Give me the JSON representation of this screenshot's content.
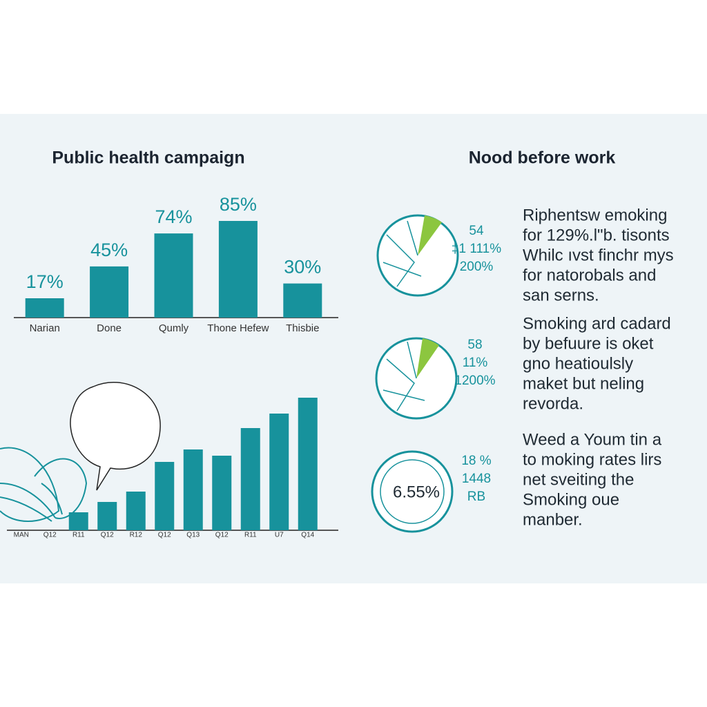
{
  "chart_data": [
    {
      "type": "bar",
      "title": "Public health campaign",
      "categories": [
        "Narian",
        "Done",
        "Qumly",
        "Thone Hefew",
        "Thisbie"
      ],
      "values": [
        17,
        45,
        74,
        85,
        30
      ],
      "value_labels": [
        "17%",
        "45%",
        "74%",
        "85%",
        "30%"
      ],
      "color": "#17929c"
    },
    {
      "type": "bar",
      "categories": [
        "MAN",
        "Q12",
        "R11",
        "Q12",
        "R12",
        "Q12",
        "Q13",
        "Q12",
        "R11",
        "U7",
        "Q14"
      ],
      "values": [
        null,
        null,
        26,
        41,
        56,
        99,
        117,
        108,
        148,
        169,
        192
      ],
      "color": "#17929c"
    }
  ],
  "panel": {
    "title": "Nood before work",
    "dials": [
      {
        "labels": [
          "54",
          "‡1 111%",
          "200%"
        ]
      },
      {
        "labels": [
          "58",
          "11%",
          "1200%"
        ]
      },
      {
        "center": "6.55%",
        "labels": [
          "18 %",
          "1448",
          "RB"
        ]
      }
    ],
    "paragraphs": [
      [
        "Riphentsw emoking",
        "for 129%.l\"b. tisonts",
        "Whilc ıvst finchr mys",
        "for natorobals and",
        "san serns."
      ],
      [
        "Smoking ard cadard",
        "by befuure is oket",
        "gno heatioulsly",
        "maket but neling",
        "revorda."
      ],
      [
        "Weed a Youm tin a",
        "to moking rates lirs",
        "net sveiting the",
        "Smoking oue",
        "manber."
      ]
    ]
  }
}
